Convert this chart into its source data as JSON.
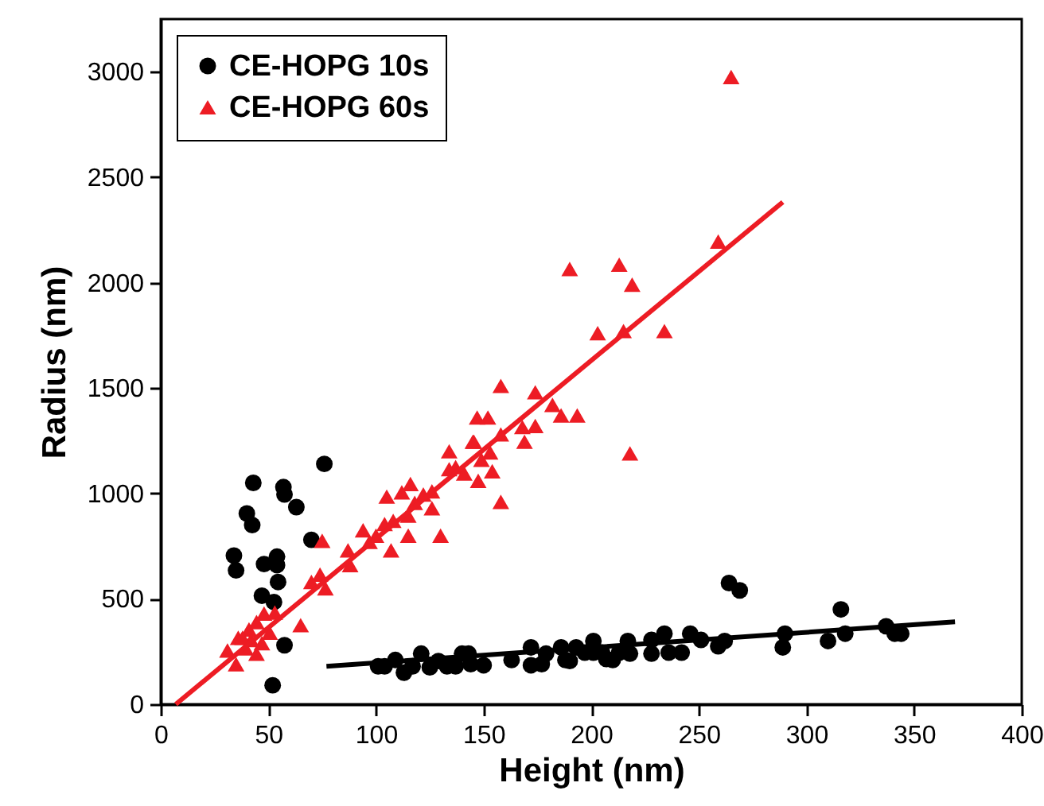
{
  "chart_data": {
    "type": "scatter",
    "xlabel": "Height (nm)",
    "ylabel": "Radius (nm)",
    "xlim": [
      0,
      400
    ],
    "ylim": [
      0,
      3250
    ],
    "xticks": [
      0,
      50,
      100,
      150,
      200,
      250,
      300,
      350,
      400
    ],
    "yticks": [
      0,
      500,
      1000,
      1500,
      2000,
      2500,
      3000
    ],
    "grid": false,
    "legend": "top left",
    "series": [
      {
        "name": "CE-HOPG 10s",
        "color": "#000000",
        "marker": "circle",
        "x": [
          43,
          57,
          57.5,
          40,
          42.5,
          63,
          76,
          70,
          34,
          35,
          48,
          54,
          54,
          54.5,
          47,
          52.6,
          57.5,
          52,
          101,
          104,
          109,
          113,
          117,
          121,
          125,
          129,
          133,
          137,
          140,
          143,
          144,
          150,
          163,
          172,
          172,
          177,
          179,
          186,
          188,
          190,
          193,
          197,
          201,
          201,
          205,
          207,
          210,
          213,
          217,
          218,
          228,
          228,
          234,
          236,
          242,
          246,
          251,
          259,
          262,
          264,
          269,
          289,
          290,
          310,
          316,
          318,
          337,
          341,
          344
        ],
        "values": [
          1050,
          1030,
          995,
          905,
          850,
          935,
          1140,
          780,
          705,
          635,
          665,
          700,
          660,
          580,
          515,
          485,
          280,
          90,
          180,
          180,
          210,
          150,
          180,
          240,
          175,
          205,
          180,
          180,
          240,
          240,
          190,
          185,
          210,
          270,
          185,
          190,
          240,
          270,
          210,
          205,
          270,
          245,
          300,
          245,
          245,
          215,
          210,
          245,
          300,
          240,
          240,
          305,
          335,
          245,
          245,
          335,
          305,
          275,
          300,
          575,
          540,
          270,
          335,
          300,
          450,
          335,
          370,
          335,
          335
        ]
      },
      {
        "name": "CE-HOPG 60s",
        "color": "#ed1c24",
        "marker": "triangle",
        "x": [
          265,
          259,
          190,
          213,
          219,
          203,
          215,
          234,
          218,
          158,
          174,
          182,
          186,
          193.5,
          147,
          152,
          168,
          174,
          158,
          145.5,
          169,
          134,
          153,
          149,
          137,
          154,
          147.5,
          158,
          105,
          126,
          145,
          134,
          141,
          122,
          116,
          112,
          118,
          126,
          115,
          108,
          104,
          115,
          130,
          100,
          94,
          97,
          107,
          75,
          87,
          88,
          74,
          70,
          76.5,
          65,
          48,
          53,
          44.5,
          41,
          36,
          31,
          35,
          39.5,
          44.5,
          47,
          50.6,
          42,
          38
        ],
        "values": [
          2975,
          2195,
          2065,
          2085,
          1990,
          1760,
          1770,
          1770,
          1190,
          1510,
          1480,
          1420,
          1370,
          1370,
          1360,
          1360,
          1315,
          1320,
          1280,
          1245,
          1245,
          1200,
          1195,
          1160,
          1125,
          1105,
          1060,
          960,
          985,
          1010,
          1245,
          1115,
          1095,
          995,
          1045,
          1005,
          955,
          930,
          895,
          870,
          855,
          800,
          800,
          800,
          825,
          770,
          730,
          775,
          730,
          660,
          615,
          580,
          550,
          375,
          430,
          435,
          390,
          355,
          315,
          255,
          190,
          265,
          240,
          290,
          340,
          305,
          315
        ]
      },
      {
        "color": "#ed1c24",
        "type": "line",
        "marker": "none",
        "line_style": "solid",
        "x": [
          7,
          289
        ],
        "values": [
          0,
          2382
        ]
      },
      {
        "color": "#000000",
        "type": "line",
        "marker": "none",
        "line_style": "solid",
        "x": [
          77,
          369
        ],
        "values": [
          180,
          391
        ]
      }
    ]
  }
}
